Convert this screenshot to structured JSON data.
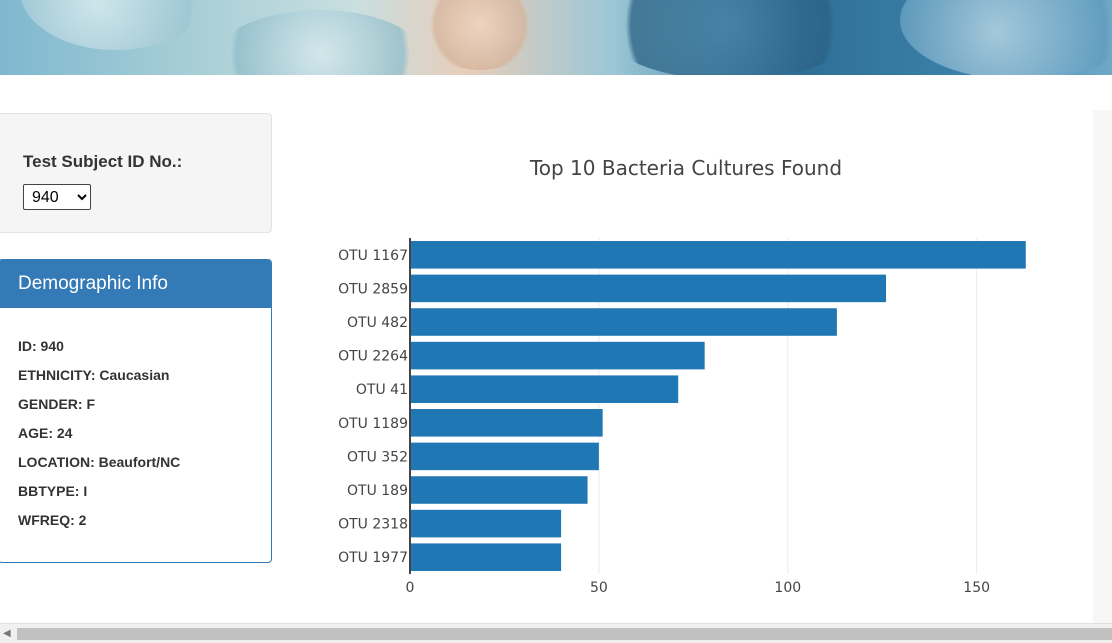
{
  "selector": {
    "label": "Test Subject ID No.:",
    "selected": "940"
  },
  "demographics": {
    "title": "Demographic Info",
    "items": [
      "ID: 940",
      "ETHNICITY: Caucasian",
      "GENDER: F",
      "AGE: 24",
      "LOCATION: Beaufort/NC",
      "BBTYPE: I",
      "WFREQ: 2"
    ]
  },
  "chart_data": {
    "type": "bar",
    "orientation": "horizontal",
    "title": "Top 10 Bacteria Cultures Found",
    "categories": [
      "OTU 1167",
      "OTU 2859",
      "OTU 482",
      "OTU 2264",
      "OTU 41",
      "OTU 1189",
      "OTU 352",
      "OTU 189",
      "OTU 2318",
      "OTU 1977"
    ],
    "values": [
      163,
      126,
      113,
      78,
      71,
      51,
      50,
      47,
      40,
      40
    ],
    "xlim": [
      0,
      180
    ],
    "xticks": [
      0,
      50,
      100,
      150
    ],
    "grid": true,
    "bar_color": "#1f77b4"
  }
}
